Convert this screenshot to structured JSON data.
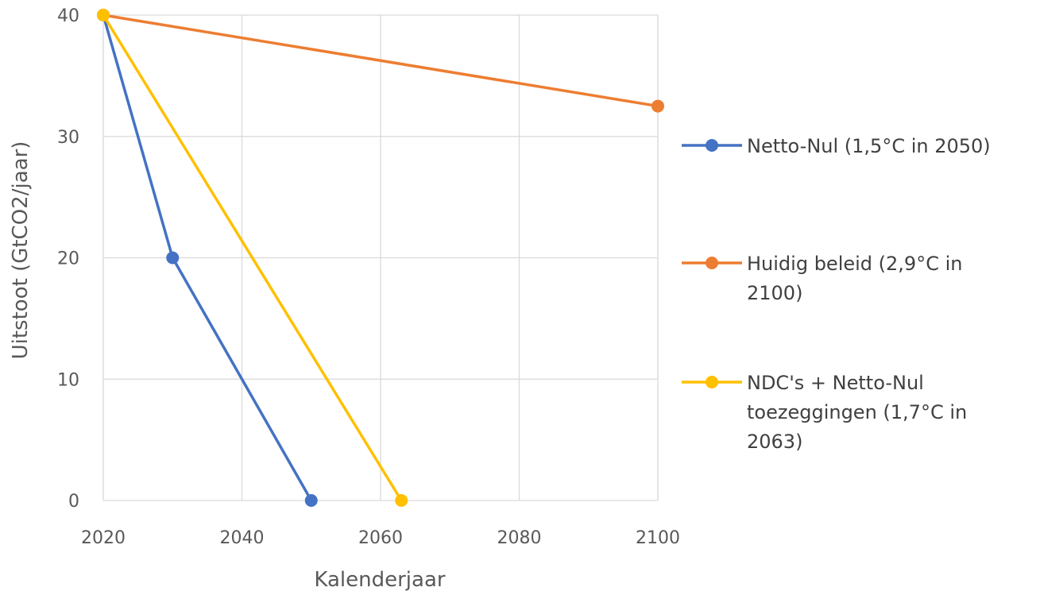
{
  "chart_data": {
    "type": "line",
    "xlabel": "Kalenderjaar",
    "ylabel": "Uitstoot (GtCO2/jaar)",
    "xlim": [
      2020,
      2100
    ],
    "ylim": [
      0,
      40
    ],
    "xticks": [
      "2020",
      "2040",
      "2060",
      "2080",
      "2100"
    ],
    "yticks": [
      "0",
      "10",
      "20",
      "30",
      "40"
    ],
    "grid": true,
    "legend_position": "right",
    "series": [
      {
        "name": "Netto-Nul (1,5°C in 2050)",
        "legend_lines": [
          "Netto-Nul (1,5°C in 2050)"
        ],
        "color": "#4472c4",
        "x": [
          2020,
          2030,
          2050
        ],
        "y": [
          40,
          20,
          0
        ]
      },
      {
        "name": "Huidig beleid (2,9°C in 2100)",
        "legend_lines": [
          "Huidig beleid (2,9°C in",
          "2100)"
        ],
        "color": "#ed7d31",
        "x": [
          2020,
          2100
        ],
        "y": [
          40,
          32.5
        ]
      },
      {
        "name": "NDC's + Netto-Nul toezeggingen (1,7°C in 2063)",
        "legend_lines": [
          "NDC's + Netto-Nul",
          "toezeggingen (1,7°C in",
          "2063)"
        ],
        "color": "#ffc000",
        "x": [
          2020,
          2063
        ],
        "y": [
          40,
          0
        ]
      }
    ]
  }
}
